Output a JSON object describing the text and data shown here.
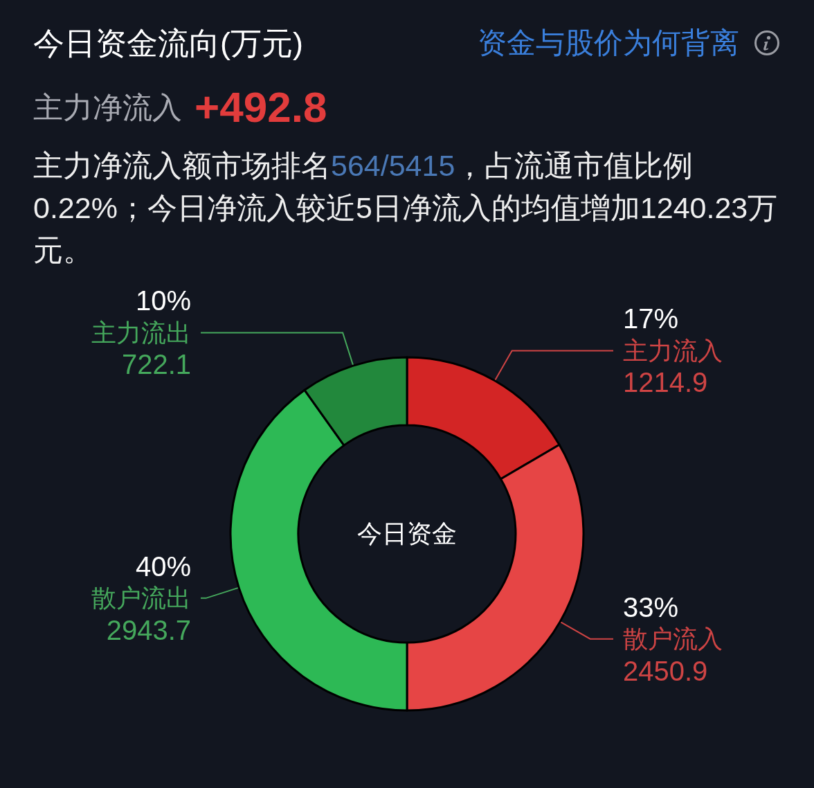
{
  "chart_data": {
    "type": "donut",
    "title": "今日资金流向(万元)",
    "subtitle": "主力净流入",
    "categories": [
      "主力流入",
      "散户流入",
      "散户流出",
      "主力流出"
    ],
    "values": [
      1214.9,
      2450.9,
      2943.7,
      722.1
    ],
    "colors": [
      "#d32525",
      "#e64545",
      "#2db955",
      "#22883c"
    ],
    "data_labels": true,
    "annotations": [
      "资金与股价为何背离",
      "+492.8",
      "主力净流入额市场排名",
      "564/5415",
      "，占流通市值比例",
      "0.22%；今日净流入较近5日净流入的均值增加1240.23万元。",
      "今日资金",
      {
        "text": "17%",
        "x": "主力流入"
      },
      {
        "text": "33%",
        "x": "散户流入"
      },
      {
        "text": "40%",
        "x": "散户流出"
      },
      {
        "text": "10%",
        "x": "主力流出"
      }
    ]
  }
}
